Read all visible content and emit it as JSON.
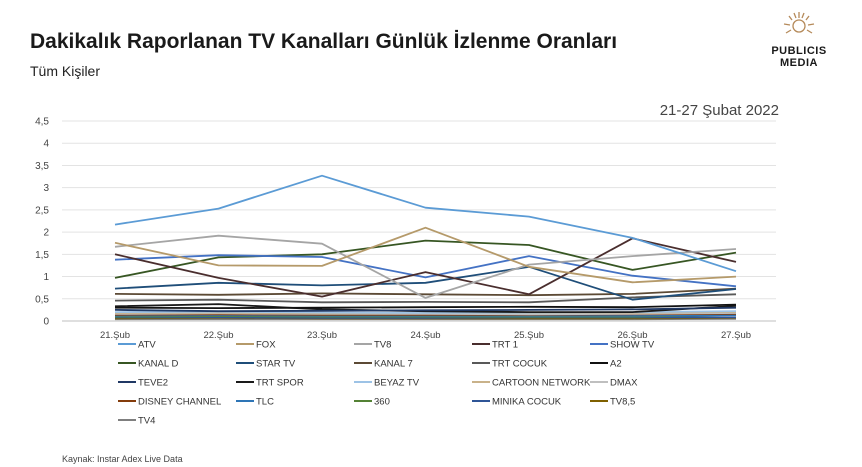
{
  "header": {
    "title": "Dakikalık Raporlanan TV Kanalları Günlük İzlenme Oranları",
    "subtitle": "Tüm Kişiler",
    "logo_line1": "PUBLICIS",
    "logo_line2": "MEDIA",
    "date_range": "21-27 Şubat 2022"
  },
  "footer": {
    "source": "Kaynak: Instar  Adex Live Data"
  },
  "chart_data": {
    "type": "line",
    "x": [
      "21.Şub",
      "22.Şub",
      "23.Şub",
      "24.Şub",
      "25.Şub",
      "26.Şub",
      "27.Şub"
    ],
    "ylim": [
      0,
      4.5
    ],
    "yticks": [
      "0",
      "0,5",
      "1",
      "1,5",
      "2",
      "2,5",
      "3",
      "3,5",
      "4",
      "4,5"
    ],
    "grid": true,
    "legend_position": "bottom",
    "series": [
      {
        "name": "ATV",
        "color": "#5b9bd5",
        "values": [
          2.17,
          2.53,
          3.27,
          2.55,
          2.35,
          1.87,
          1.12
        ]
      },
      {
        "name": "FOX",
        "color": "#b59a6a",
        "values": [
          1.76,
          1.25,
          1.24,
          2.1,
          1.22,
          0.87,
          1.0
        ]
      },
      {
        "name": "TV8",
        "color": "#a5a5a5",
        "values": [
          1.67,
          1.92,
          1.74,
          0.52,
          1.27,
          1.46,
          1.62
        ]
      },
      {
        "name": "TRT 1",
        "color": "#4a2e2e",
        "values": [
          1.5,
          0.97,
          0.55,
          1.1,
          0.6,
          1.86,
          1.33
        ]
      },
      {
        "name": "SHOW TV",
        "color": "#4472c4",
        "values": [
          1.38,
          1.48,
          1.44,
          0.98,
          1.46,
          1.02,
          0.78
        ]
      },
      {
        "name": "KANAL D",
        "color": "#375623",
        "values": [
          0.97,
          1.43,
          1.5,
          1.81,
          1.71,
          1.15,
          1.54
        ]
      },
      {
        "name": "STAR TV",
        "color": "#1f4e79",
        "values": [
          0.73,
          0.86,
          0.8,
          0.86,
          1.22,
          0.48,
          0.72
        ]
      },
      {
        "name": "KANAL 7",
        "color": "#5c4a35",
        "values": [
          0.61,
          0.59,
          0.62,
          0.6,
          0.58,
          0.61,
          0.73
        ]
      },
      {
        "name": "TRT COCUK",
        "color": "#595959",
        "values": [
          0.46,
          0.48,
          0.42,
          0.43,
          0.42,
          0.53,
          0.6
        ]
      },
      {
        "name": "A2",
        "color": "#111111",
        "values": [
          0.3,
          0.29,
          0.3,
          0.31,
          0.32,
          0.31,
          0.37
        ]
      },
      {
        "name": "TEVE2",
        "color": "#203864",
        "values": [
          0.25,
          0.22,
          0.23,
          0.24,
          0.25,
          0.26,
          0.3
        ]
      },
      {
        "name": "TRT SPOR",
        "color": "#1a1a1a",
        "values": [
          0.33,
          0.38,
          0.26,
          0.22,
          0.2,
          0.2,
          0.34
        ]
      },
      {
        "name": "BEYAZ TV",
        "color": "#9dc3e6",
        "values": [
          0.2,
          0.21,
          0.19,
          0.18,
          0.19,
          0.2,
          0.22
        ]
      },
      {
        "name": "CARTOON NETWORK",
        "color": "#c9b28a",
        "values": [
          0.18,
          0.19,
          0.17,
          0.18,
          0.18,
          0.19,
          0.2
        ]
      },
      {
        "name": "DMAX",
        "color": "#bfbfbf",
        "values": [
          0.16,
          0.17,
          0.16,
          0.16,
          0.15,
          0.16,
          0.18
        ]
      },
      {
        "name": "DISNEY CHANNEL",
        "color": "#843c0c",
        "values": [
          0.14,
          0.15,
          0.14,
          0.14,
          0.14,
          0.15,
          0.16
        ]
      },
      {
        "name": "TLC",
        "color": "#2e75b6",
        "values": [
          0.12,
          0.13,
          0.12,
          0.12,
          0.12,
          0.12,
          0.13
        ]
      },
      {
        "name": "360",
        "color": "#548235",
        "values": [
          0.1,
          0.11,
          0.1,
          0.1,
          0.1,
          0.1,
          0.14
        ]
      },
      {
        "name": "MINIKA COCUK",
        "color": "#2f5597",
        "values": [
          0.08,
          0.08,
          0.07,
          0.07,
          0.08,
          0.08,
          0.08
        ]
      },
      {
        "name": "TV8,5",
        "color": "#7f6000",
        "values": [
          0.06,
          0.07,
          0.06,
          0.06,
          0.06,
          0.06,
          0.07
        ]
      },
      {
        "name": "TV4",
        "color": "#7f7f7f",
        "values": [
          0.04,
          0.04,
          0.04,
          0.04,
          0.04,
          0.04,
          0.05
        ]
      }
    ]
  }
}
